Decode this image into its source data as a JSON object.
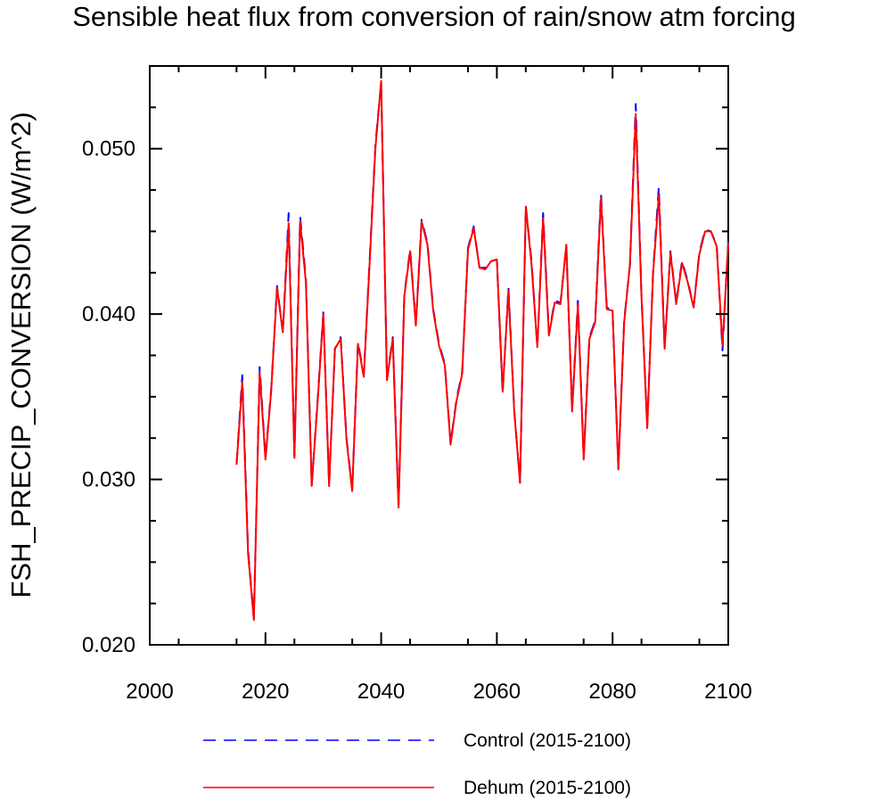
{
  "chart_data": {
    "type": "line",
    "title": "Sensible heat flux from conversion of rain/snow atm forcing",
    "xlabel": "",
    "ylabel": "FSH_PRECIP_CONVERSION  (W/m^2)",
    "xlim": [
      2000,
      2100
    ],
    "ylim": [
      0.02,
      0.055
    ],
    "xticks": [
      2000,
      2020,
      2040,
      2060,
      2080,
      2100
    ],
    "xtick_labels": [
      "2000",
      "2020",
      "2040",
      "2060",
      "2080",
      "2100"
    ],
    "yticks": [
      0.02,
      0.03,
      0.04,
      0.05
    ],
    "ytick_labels": [
      "0.020",
      "0.030",
      "0.040",
      "0.050"
    ],
    "legend_position": "bottom",
    "x": [
      2015,
      2016,
      2017,
      2018,
      2019,
      2020,
      2021,
      2022,
      2023,
      2024,
      2025,
      2026,
      2027,
      2028,
      2029,
      2030,
      2031,
      2032,
      2033,
      2034,
      2035,
      2036,
      2037,
      2038,
      2039,
      2040,
      2041,
      2042,
      2043,
      2044,
      2045,
      2046,
      2047,
      2048,
      2049,
      2050,
      2051,
      2052,
      2053,
      2054,
      2055,
      2056,
      2057,
      2058,
      2059,
      2060,
      2061,
      2062,
      2063,
      2064,
      2065,
      2066,
      2067,
      2068,
      2069,
      2070,
      2071,
      2072,
      2073,
      2074,
      2075,
      2076,
      2077,
      2078,
      2079,
      2080,
      2081,
      2082,
      2083,
      2084,
      2085,
      2086,
      2087,
      2088,
      2089,
      2090,
      2091,
      2092,
      2093,
      2094,
      2095,
      2096,
      2097,
      2098,
      2099,
      2100
    ],
    "series": [
      {
        "name": "Control (2015-2100)",
        "color": "#0000ff",
        "style": "dashed",
        "values": [
          0.0309,
          0.0363,
          0.0257,
          0.0216,
          0.0368,
          0.0313,
          0.0355,
          0.0417,
          0.0389,
          0.0461,
          0.0314,
          0.0459,
          0.0421,
          0.0297,
          0.0347,
          0.0401,
          0.0297,
          0.0379,
          0.0386,
          0.0325,
          0.0294,
          0.0383,
          0.0363,
          0.0432,
          0.0502,
          0.054,
          0.0361,
          0.0386,
          0.0284,
          0.0412,
          0.0439,
          0.0394,
          0.0457,
          0.0443,
          0.0403,
          0.0382,
          0.037,
          0.0322,
          0.0348,
          0.0365,
          0.044,
          0.0453,
          0.0428,
          0.0428,
          0.0432,
          0.0433,
          0.0352,
          0.0416,
          0.0342,
          0.0298,
          0.0465,
          0.0432,
          0.038,
          0.0461,
          0.0388,
          0.0408,
          0.0407,
          0.0441,
          0.0342,
          0.0408,
          0.0313,
          0.0386,
          0.0396,
          0.0473,
          0.0404,
          0.0402,
          0.0307,
          0.0396,
          0.043,
          0.0527,
          0.0412,
          0.0332,
          0.0425,
          0.0477,
          0.038,
          0.0438,
          0.0407,
          0.0432,
          0.042,
          0.0404,
          0.0437,
          0.0451,
          0.045,
          0.0442,
          0.0378,
          0.0444
        ]
      },
      {
        "name": "Dehum (2015-2100)",
        "color": "#ff0000",
        "style": "solid",
        "values": [
          0.0309,
          0.0359,
          0.0255,
          0.0215,
          0.0365,
          0.0312,
          0.0354,
          0.0416,
          0.0389,
          0.0455,
          0.0313,
          0.0456,
          0.0419,
          0.0296,
          0.0346,
          0.04,
          0.0296,
          0.0379,
          0.0385,
          0.0324,
          0.0293,
          0.0382,
          0.0362,
          0.043,
          0.05,
          0.0541,
          0.036,
          0.0385,
          0.0283,
          0.0411,
          0.0438,
          0.0393,
          0.0456,
          0.0442,
          0.0402,
          0.0381,
          0.0369,
          0.0321,
          0.0347,
          0.0364,
          0.0439,
          0.0452,
          0.0428,
          0.0427,
          0.0432,
          0.0433,
          0.0353,
          0.0414,
          0.0341,
          0.0298,
          0.0465,
          0.043,
          0.038,
          0.0458,
          0.0387,
          0.0407,
          0.0406,
          0.0442,
          0.0341,
          0.0406,
          0.0312,
          0.0385,
          0.0395,
          0.047,
          0.0403,
          0.0402,
          0.0306,
          0.0395,
          0.043,
          0.0521,
          0.0411,
          0.0331,
          0.0424,
          0.0472,
          0.0379,
          0.0437,
          0.0406,
          0.0431,
          0.0419,
          0.0404,
          0.0436,
          0.045,
          0.045,
          0.0441,
          0.0381,
          0.0443
        ]
      }
    ]
  }
}
